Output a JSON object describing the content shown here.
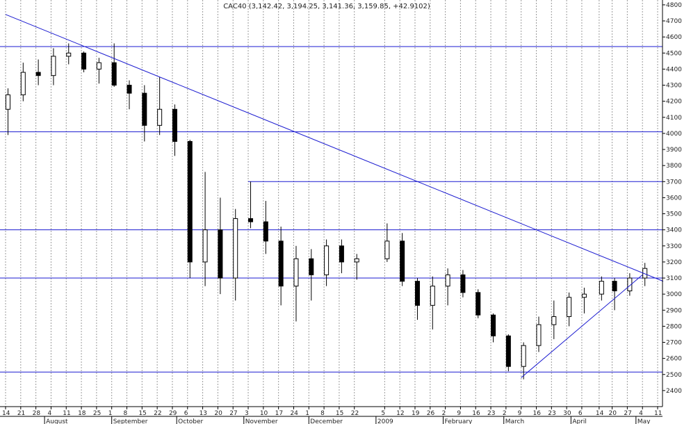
{
  "chart_data": {
    "type": "candlestick",
    "title": "CAC40 (3,142.42, 3,194.25, 3,141.36, 3,159.85, +42.9102)",
    "xlabel": "",
    "ylabel": "",
    "ylim": [
      2300,
      4830
    ],
    "y_ticks": [
      2400,
      2500,
      2600,
      2700,
      2800,
      2900,
      3000,
      3100,
      3200,
      3300,
      3400,
      3500,
      3600,
      3700,
      3800,
      3900,
      4000,
      4100,
      4200,
      4300,
      4400,
      4500,
      4600,
      4700,
      4800
    ],
    "y_axis_side": "right",
    "grid": {
      "vertical_dashed": true
    },
    "day_ticks": [
      {
        "label": "14",
        "date": "2008-07-14"
      },
      {
        "label": "21",
        "date": "2008-07-21"
      },
      {
        "label": "28",
        "date": "2008-07-28"
      },
      {
        "label": "4",
        "date": "2008-08-04"
      },
      {
        "label": "11",
        "date": "2008-08-11"
      },
      {
        "label": "18",
        "date": "2008-08-18"
      },
      {
        "label": "25",
        "date": "2008-08-25"
      },
      {
        "label": "1",
        "date": "2008-09-01"
      },
      {
        "label": "8",
        "date": "2008-09-08"
      },
      {
        "label": "15",
        "date": "2008-09-15"
      },
      {
        "label": "22",
        "date": "2008-09-22"
      },
      {
        "label": "29",
        "date": "2008-09-29"
      },
      {
        "label": "6",
        "date": "2008-10-06"
      },
      {
        "label": "13",
        "date": "2008-10-13"
      },
      {
        "label": "20",
        "date": "2008-10-20"
      },
      {
        "label": "27",
        "date": "2008-10-27"
      },
      {
        "label": "3",
        "date": "2008-11-03"
      },
      {
        "label": "10",
        "date": "2008-11-10"
      },
      {
        "label": "17",
        "date": "2008-11-17"
      },
      {
        "label": "24",
        "date": "2008-11-24"
      },
      {
        "label": "1",
        "date": "2008-12-01"
      },
      {
        "label": "8",
        "date": "2008-12-08"
      },
      {
        "label": "15",
        "date": "2008-12-15"
      },
      {
        "label": "22",
        "date": "2008-12-22"
      },
      {
        "label": "5",
        "date": "2009-01-05"
      },
      {
        "label": "12",
        "date": "2009-01-12"
      },
      {
        "label": "19",
        "date": "2009-01-19"
      },
      {
        "label": "26",
        "date": "2009-01-26"
      },
      {
        "label": "2",
        "date": "2009-02-02"
      },
      {
        "label": "9",
        "date": "2009-02-09"
      },
      {
        "label": "16",
        "date": "2009-02-16"
      },
      {
        "label": "23",
        "date": "2009-02-23"
      },
      {
        "label": "2",
        "date": "2009-03-02"
      },
      {
        "label": "9",
        "date": "2009-03-09"
      },
      {
        "label": "16",
        "date": "2009-03-16"
      },
      {
        "label": "23",
        "date": "2009-03-23"
      },
      {
        "label": "30",
        "date": "2009-03-30"
      },
      {
        "label": "6",
        "date": "2009-04-06"
      },
      {
        "label": "14",
        "date": "2009-04-14"
      },
      {
        "label": "20",
        "date": "2009-04-20"
      },
      {
        "label": "27",
        "date": "2009-04-27"
      },
      {
        "label": "4",
        "date": "2009-05-04"
      },
      {
        "label": "11",
        "date": "2009-05-11"
      }
    ],
    "month_labels": [
      {
        "label": "August",
        "date": "2008-08-01"
      },
      {
        "label": "September",
        "date": "2008-09-01"
      },
      {
        "label": "October",
        "date": "2008-10-01"
      },
      {
        "label": "November",
        "date": "2008-11-01"
      },
      {
        "label": "December",
        "date": "2008-12-01"
      },
      {
        "label": "2009",
        "date": "2009-01-01"
      },
      {
        "label": "February",
        "date": "2009-02-01"
      },
      {
        "label": "March",
        "date": "2009-03-01"
      },
      {
        "label": "April",
        "date": "2009-04-01"
      },
      {
        "label": "May",
        "date": "2009-05-01"
      }
    ],
    "weekly_ohlc": [
      {
        "date": "2008-07-14",
        "open": 4150,
        "high": 4280,
        "low": 3990,
        "close": 4240
      },
      {
        "date": "2008-07-21",
        "open": 4240,
        "high": 4440,
        "low": 4200,
        "close": 4380
      },
      {
        "date": "2008-07-28",
        "open": 4380,
        "high": 4460,
        "low": 4300,
        "close": 4360
      },
      {
        "date": "2008-08-04",
        "open": 4360,
        "high": 4530,
        "low": 4300,
        "close": 4480
      },
      {
        "date": "2008-08-11",
        "open": 4480,
        "high": 4560,
        "low": 4430,
        "close": 4500
      },
      {
        "date": "2008-08-18",
        "open": 4500,
        "high": 4510,
        "low": 4380,
        "close": 4400
      },
      {
        "date": "2008-08-25",
        "open": 4400,
        "high": 4470,
        "low": 4310,
        "close": 4440
      },
      {
        "date": "2008-09-01",
        "open": 4440,
        "high": 4560,
        "low": 4290,
        "close": 4300
      },
      {
        "date": "2008-09-08",
        "open": 4300,
        "high": 4330,
        "low": 4150,
        "close": 4250
      },
      {
        "date": "2008-09-15",
        "open": 4250,
        "high": 4300,
        "low": 3950,
        "close": 4050
      },
      {
        "date": "2008-09-22",
        "open": 4050,
        "high": 4350,
        "low": 3990,
        "close": 4150
      },
      {
        "date": "2008-09-29",
        "open": 4150,
        "high": 4180,
        "low": 3860,
        "close": 3950
      },
      {
        "date": "2008-10-06",
        "open": 3950,
        "high": 3960,
        "low": 3100,
        "close": 3200
      },
      {
        "date": "2008-10-13",
        "open": 3200,
        "high": 3760,
        "low": 3050,
        "close": 3400
      },
      {
        "date": "2008-10-20",
        "open": 3400,
        "high": 3600,
        "low": 3000,
        "close": 3100
      },
      {
        "date": "2008-10-27",
        "open": 3100,
        "high": 3530,
        "low": 2960,
        "close": 3470
      },
      {
        "date": "2008-11-03",
        "open": 3470,
        "high": 3700,
        "low": 3410,
        "close": 3450
      },
      {
        "date": "2008-11-10",
        "open": 3450,
        "high": 3580,
        "low": 3250,
        "close": 3330
      },
      {
        "date": "2008-11-17",
        "open": 3330,
        "high": 3420,
        "low": 2930,
        "close": 3050
      },
      {
        "date": "2008-11-24",
        "open": 3050,
        "high": 3300,
        "low": 2830,
        "close": 3220
      },
      {
        "date": "2008-12-01",
        "open": 3220,
        "high": 3280,
        "low": 2960,
        "close": 3120
      },
      {
        "date": "2008-12-08",
        "open": 3120,
        "high": 3340,
        "low": 3050,
        "close": 3300
      },
      {
        "date": "2008-12-15",
        "open": 3300,
        "high": 3340,
        "low": 3130,
        "close": 3200
      },
      {
        "date": "2008-12-22",
        "open": 3200,
        "high": 3250,
        "low": 3090,
        "close": 3220
      },
      {
        "date": "2009-01-05",
        "open": 3220,
        "high": 3440,
        "low": 3200,
        "close": 3330
      },
      {
        "date": "2009-01-12",
        "open": 3330,
        "high": 3380,
        "low": 3050,
        "close": 3080
      },
      {
        "date": "2009-01-19",
        "open": 3080,
        "high": 3100,
        "low": 2840,
        "close": 2930
      },
      {
        "date": "2009-01-26",
        "open": 2930,
        "high": 3110,
        "low": 2780,
        "close": 3050
      },
      {
        "date": "2009-02-02",
        "open": 3050,
        "high": 3160,
        "low": 2930,
        "close": 3120
      },
      {
        "date": "2009-02-09",
        "open": 3120,
        "high": 3150,
        "low": 2980,
        "close": 3010
      },
      {
        "date": "2009-02-16",
        "open": 3010,
        "high": 3030,
        "low": 2850,
        "close": 2870
      },
      {
        "date": "2009-02-23",
        "open": 2870,
        "high": 2880,
        "low": 2700,
        "close": 2740
      },
      {
        "date": "2009-03-02",
        "open": 2740,
        "high": 2750,
        "low": 2520,
        "close": 2550
      },
      {
        "date": "2009-03-09",
        "open": 2550,
        "high": 2700,
        "low": 2470,
        "close": 2680
      },
      {
        "date": "2009-03-16",
        "open": 2680,
        "high": 2860,
        "low": 2640,
        "close": 2810
      },
      {
        "date": "2009-03-23",
        "open": 2810,
        "high": 2960,
        "low": 2720,
        "close": 2860
      },
      {
        "date": "2009-03-30",
        "open": 2860,
        "high": 3010,
        "low": 2800,
        "close": 2980
      },
      {
        "date": "2009-04-06",
        "open": 2980,
        "high": 3040,
        "low": 2880,
        "close": 3000
      },
      {
        "date": "2009-04-14",
        "open": 3000,
        "high": 3110,
        "low": 2960,
        "close": 3080
      },
      {
        "date": "2009-04-20",
        "open": 3080,
        "high": 3100,
        "low": 2900,
        "close": 3020
      },
      {
        "date": "2009-04-27",
        "open": 3020,
        "high": 3130,
        "low": 2990,
        "close": 3100
      },
      {
        "date": "2009-05-04",
        "open": 3100,
        "high": 3194.25,
        "low": 3050,
        "close": 3159.85
      }
    ],
    "horizontal_lines": [
      4540,
      4010,
      3400,
      3100,
      2515
    ],
    "resistance_segment": {
      "y": 3700,
      "from": "2008-11-03",
      "to": "2009-05-11"
    },
    "trendlines": [
      {
        "name": "downtrend",
        "from": {
          "date": "2008-07-14",
          "value": 4740
        },
        "to": {
          "date": "2009-05-11",
          "value": 3080
        }
      },
      {
        "name": "uptrend",
        "from": {
          "date": "2009-03-09",
          "value": 2480
        },
        "to": {
          "date": "2009-05-04",
          "value": 3120
        }
      }
    ],
    "colors": {
      "candle": "#000000",
      "lines": "#1a1ad0",
      "grid": "#9a9a9a",
      "background": "#ffffff"
    }
  }
}
